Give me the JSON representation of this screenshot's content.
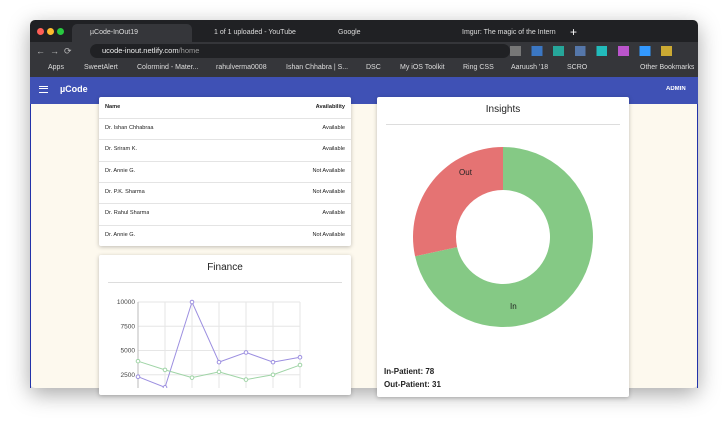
{
  "browser": {
    "tabs": [
      "µCode-InOut19",
      "1 of 1 uploaded - YouTube",
      "Google",
      "Imgur: The magic of the Intern"
    ],
    "url": {
      "host": "ucode-inout.netlify.com",
      "path": "/home"
    },
    "bookmarks": [
      "Apps",
      "SweetAlert",
      "Colormind - Mater...",
      "rahulverma0008",
      "Ishan Chhabra | S...",
      "DSC",
      "My iOS Toolkit",
      "Ring CSS",
      "Aaruush '18",
      "SCRO"
    ],
    "other_bookmarks": "Other Bookmarks"
  },
  "app_bar": {
    "title": "µCode",
    "user": "ADMIN"
  },
  "table": {
    "headers": [
      "Name",
      "Availability"
    ],
    "rows": [
      [
        "Dr. Ishan Chhabraa",
        "Available"
      ],
      [
        "Dr. Sriram K.",
        "Available"
      ],
      [
        "Dr. Annie G.",
        "Not Available"
      ],
      [
        "Dr. P.K. Sharma",
        "Not Available"
      ],
      [
        "Dr. Rahul Sharma",
        "Available"
      ],
      [
        "Dr. Annie G.",
        "Not Available"
      ]
    ]
  },
  "finance": {
    "title": "Finance",
    "chart_data": {
      "type": "line",
      "categories": [
        null,
        null,
        null,
        null,
        null,
        null,
        null
      ],
      "series": [
        {
          "color": "#9c8fe0",
          "values": [
            2300,
            1200,
            10000,
            3800,
            4800,
            3800,
            4300
          ]
        },
        {
          "color": "#9fd4a6",
          "values": [
            3900,
            3000,
            2200,
            2800,
            2000,
            2500,
            3500
          ]
        }
      ],
      "ylim": [
        0,
        10000
      ],
      "yticks": [
        2500,
        5000,
        7500,
        10000
      ],
      "grid": true
    }
  },
  "insights": {
    "title": "Insights",
    "chart_data": {
      "type": "pie",
      "donut": true,
      "categories": [
        "In",
        "Out"
      ],
      "values": [
        78,
        31
      ],
      "colors": [
        "#85c985",
        "#e57373"
      ]
    },
    "summary": [
      "In-Patient: 78",
      "Out-Patient: 31"
    ]
  }
}
